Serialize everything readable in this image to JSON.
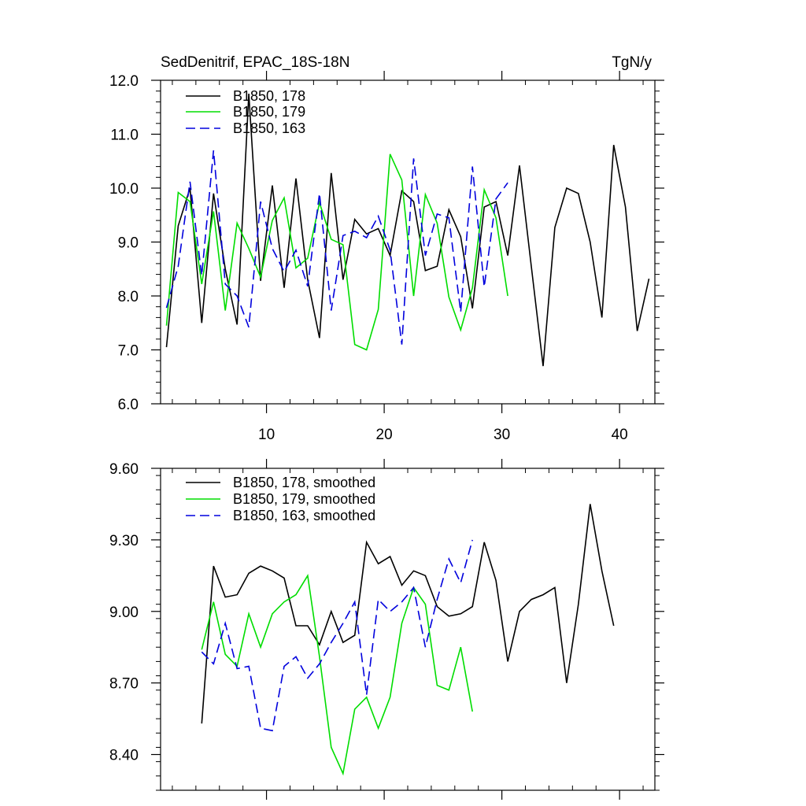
{
  "chart_data": [
    {
      "type": "line",
      "title": "SedDenitrif, EPAC_18S-18N",
      "units": "TgN/y",
      "xlim": [
        1,
        43
      ],
      "ylim": [
        6.0,
        12.0
      ],
      "xticks": [
        10,
        20,
        30,
        40
      ],
      "xtick_labels": [
        "10",
        "20",
        "30",
        "40"
      ],
      "yticks": [
        6.0,
        7.0,
        8.0,
        9.0,
        10.0,
        11.0,
        12.0
      ],
      "ytick_labels": [
        "6.0",
        "7.0",
        "8.0",
        "9.0",
        "10.0",
        "11.0",
        "12.0"
      ],
      "legend_position": "top-left",
      "series": [
        {
          "name": "B1850, 178",
          "color": "#000000",
          "dash": "solid",
          "x": [
            1.5,
            2.5,
            3.5,
            4.5,
            5.5,
            6.5,
            7.5,
            8.5,
            9.5,
            10.5,
            11.5,
            12.5,
            13.5,
            14.5,
            15.5,
            16.5,
            17.5,
            18.5,
            19.5,
            20.5,
            21.5,
            22.5,
            23.5,
            24.5,
            25.5,
            26.5,
            27.5,
            28.5,
            29.5,
            30.5,
            31.5,
            32.5,
            33.5,
            34.5,
            35.5,
            36.5,
            37.5,
            38.5,
            39.5,
            40.5,
            41.5,
            42.5
          ],
          "values": [
            7.05,
            9.3,
            10.0,
            7.5,
            9.9,
            8.5,
            7.47,
            11.75,
            8.28,
            10.05,
            8.15,
            10.18,
            8.3,
            7.22,
            10.28,
            8.3,
            9.42,
            9.15,
            9.25,
            8.75,
            9.95,
            9.75,
            8.47,
            8.55,
            9.6,
            9.1,
            7.77,
            9.65,
            9.75,
            8.75,
            10.42,
            8.55,
            6.7,
            9.27,
            10.0,
            9.9,
            9.0,
            7.6,
            10.8,
            9.65,
            7.35,
            8.32
          ]
        },
        {
          "name": "B1850, 179",
          "color": "#00dd00",
          "dash": "solid",
          "x": [
            1.5,
            2.5,
            3.5,
            4.5,
            5.5,
            6.5,
            7.5,
            8.5,
            9.5,
            10.5,
            11.5,
            12.5,
            13.5,
            14.5,
            15.5,
            16.5,
            17.5,
            18.5,
            19.5,
            20.5,
            21.5,
            22.5,
            23.5,
            24.5,
            25.5,
            26.5,
            27.5,
            28.5,
            29.5,
            30.5
          ],
          "values": [
            7.45,
            9.92,
            9.75,
            8.22,
            9.57,
            7.73,
            9.35,
            8.88,
            8.35,
            9.4,
            9.82,
            8.52,
            8.7,
            9.73,
            9.05,
            8.95,
            7.1,
            7.0,
            7.75,
            10.63,
            10.15,
            8.0,
            9.88,
            9.35,
            7.98,
            7.37,
            8.15,
            9.97,
            9.45,
            8.0
          ]
        },
        {
          "name": "B1850, 163",
          "color": "#0000dd",
          "dash": "dashed",
          "x": [
            1.5,
            2.5,
            3.5,
            4.5,
            5.5,
            6.5,
            7.5,
            8.5,
            9.5,
            10.5,
            11.5,
            12.5,
            13.5,
            14.5,
            15.5,
            16.5,
            17.5,
            18.5,
            19.5,
            20.5,
            21.5,
            22.5,
            23.5,
            24.5,
            25.5,
            26.5,
            27.5,
            28.5,
            29.5,
            30.5
          ],
          "values": [
            7.78,
            8.55,
            10.12,
            8.38,
            10.7,
            8.22,
            8.0,
            7.42,
            9.75,
            8.88,
            8.45,
            8.85,
            8.18,
            9.9,
            7.73,
            9.12,
            9.2,
            9.08,
            9.48,
            8.85,
            7.1,
            10.55,
            8.75,
            9.52,
            9.45,
            7.7,
            10.4,
            8.17,
            9.8,
            10.1
          ]
        }
      ]
    },
    {
      "type": "line",
      "title": "",
      "xlim": [
        1,
        43
      ],
      "ylim": [
        8.25,
        9.6
      ],
      "xticks": [
        10,
        20,
        30,
        40
      ],
      "yticks": [
        8.4,
        8.7,
        9.0,
        9.3,
        9.6
      ],
      "ytick_labels": [
        "8.40",
        "8.70",
        "9.00",
        "9.30",
        "9.60"
      ],
      "legend_position": "top-left",
      "series": [
        {
          "name": "B1850, 178, smoothed",
          "color": "#000000",
          "dash": "solid",
          "x": [
            4.5,
            5.5,
            6.5,
            7.5,
            8.5,
            9.5,
            10.5,
            11.5,
            12.5,
            13.5,
            14.5,
            15.5,
            16.5,
            17.5,
            18.5,
            19.5,
            20.5,
            21.5,
            22.5,
            23.5,
            24.5,
            25.5,
            26.5,
            27.5,
            28.5,
            29.5,
            30.5,
            31.5,
            32.5,
            33.5,
            34.5,
            35.5,
            36.5,
            37.5,
            38.5,
            39.5
          ],
          "values": [
            8.53,
            9.19,
            9.06,
            9.07,
            9.16,
            9.19,
            9.17,
            9.14,
            8.94,
            8.94,
            8.86,
            9.0,
            8.87,
            8.9,
            9.29,
            9.2,
            9.23,
            9.11,
            9.17,
            9.15,
            9.02,
            8.98,
            8.99,
            9.02,
            9.29,
            9.13,
            8.79,
            9.0,
            9.05,
            9.07,
            9.1,
            8.7,
            9.03,
            9.45,
            9.17,
            8.94
          ]
        },
        {
          "name": "B1850, 179, smoothed",
          "color": "#00dd00",
          "dash": "solid",
          "x": [
            4.5,
            5.5,
            6.5,
            7.5,
            8.5,
            9.5,
            10.5,
            11.5,
            12.5,
            13.5,
            14.5,
            15.5,
            16.5,
            17.5,
            18.5,
            19.5,
            20.5,
            21.5,
            22.5,
            23.5,
            24.5,
            25.5,
            26.5,
            27.5
          ],
          "values": [
            8.84,
            9.04,
            8.82,
            8.77,
            8.99,
            8.85,
            8.99,
            9.04,
            9.07,
            9.15,
            8.81,
            8.43,
            8.32,
            8.59,
            8.64,
            8.51,
            8.64,
            8.95,
            9.1,
            9.03,
            8.69,
            8.67,
            8.85,
            8.58
          ]
        },
        {
          "name": "B1850, 163, smoothed",
          "color": "#0000dd",
          "dash": "dashed",
          "x": [
            4.5,
            5.5,
            6.5,
            7.5,
            8.5,
            9.5,
            10.5,
            11.5,
            12.5,
            13.5,
            14.5,
            15.5,
            16.5,
            17.5,
            18.5,
            19.5,
            20.5,
            21.5,
            22.5,
            23.5,
            24.5,
            25.5,
            26.5,
            27.5
          ],
          "values": [
            8.83,
            8.78,
            8.95,
            8.76,
            8.77,
            8.51,
            8.5,
            8.77,
            8.81,
            8.72,
            8.78,
            8.87,
            8.95,
            9.04,
            8.65,
            9.05,
            9.0,
            9.04,
            9.1,
            8.85,
            9.05,
            9.22,
            9.12,
            9.3
          ]
        }
      ]
    }
  ]
}
